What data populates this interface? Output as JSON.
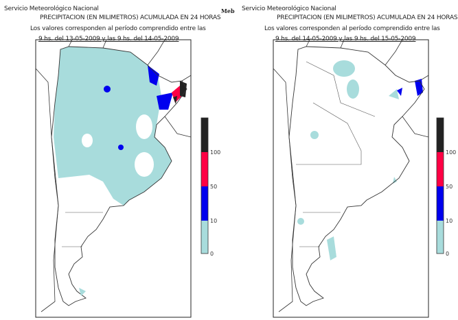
{
  "brand": "Meb",
  "legend": {
    "ticks": [
      "0",
      "10",
      "50",
      "100"
    ],
    "colors": {
      "0-10": "#a8dcdc",
      "10-50": "#0000ee",
      "50-100": "#ff0044",
      "100+": "#222222"
    }
  },
  "maps": [
    {
      "org": "Servicio Meteorológico Nacional",
      "title": "PRECIPITACION (EN MILIMETROS) ACUMULADA EN 24 HORAS",
      "subtitle": "Los valores corresponden al período comprendido entre las",
      "period": "9 hs. del 13-05-2009  y las 9 hs. del 14-05-2009"
    },
    {
      "org": "Servicio Meteorológico Nacional",
      "title": "PRECIPITACION (EN MILIMETROS) ACUMULADA EN 24 HORAS",
      "subtitle": "Los valores corresponden al período comprendido entre las",
      "period": "9 hs. del 14-05-2009  y las 9 hs. del 15-05-2009"
    }
  ]
}
